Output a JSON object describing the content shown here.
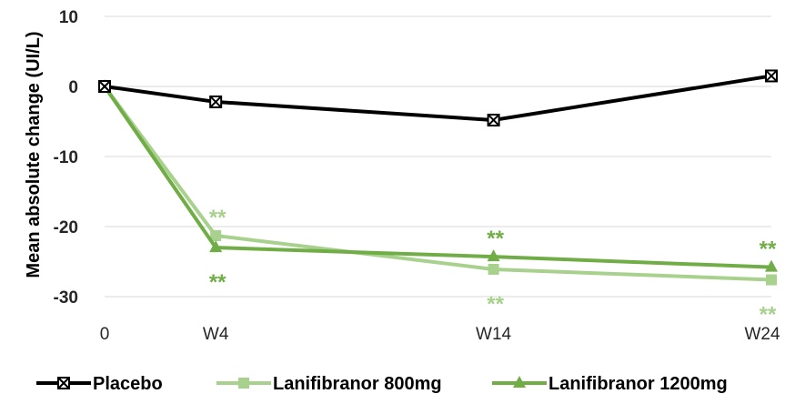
{
  "chart_data": {
    "type": "line",
    "ylabel": "Mean absolute change (UI/L)",
    "xlabel": "",
    "categories": [
      "0",
      "W4",
      "W14",
      "W24"
    ],
    "x": [
      0,
      4,
      14,
      24
    ],
    "ylim": [
      -30,
      10
    ],
    "yticks": [
      10,
      0,
      -10,
      -20,
      -30
    ],
    "grid": true,
    "legend_position": "bottom",
    "series": [
      {
        "name": "Placebo",
        "color": "#000000",
        "marker": "x-square",
        "values": [
          0,
          -2.2,
          -4.8,
          1.5
        ]
      },
      {
        "name": "Lanifibranor 800mg",
        "color": "#a9d18e",
        "marker": "square",
        "values": [
          0,
          -21.3,
          -26.1,
          -27.6
        ]
      },
      {
        "name": "Lanifibranor 1200mg",
        "color": "#70ad47",
        "marker": "triangle",
        "values": [
          0,
          -23.0,
          -24.3,
          -25.8
        ]
      }
    ],
    "annotations": [
      {
        "text": "**",
        "series": "Lanifibranor 800mg",
        "x": 4,
        "position": "above",
        "color": "#a9d18e"
      },
      {
        "text": "**",
        "series": "Lanifibranor 1200mg",
        "x": 4,
        "position": "below",
        "color": "#70ad47"
      },
      {
        "text": "**",
        "series": "Lanifibranor 1200mg",
        "x": 14,
        "position": "above",
        "color": "#70ad47"
      },
      {
        "text": "**",
        "series": "Lanifibranor 800mg",
        "x": 14,
        "position": "below",
        "color": "#a9d18e"
      },
      {
        "text": "**",
        "series": "Lanifibranor 1200mg",
        "x": 24,
        "position": "above",
        "color": "#70ad47"
      },
      {
        "text": "**",
        "series": "Lanifibranor 800mg",
        "x": 24,
        "position": "below",
        "color": "#a9d18e"
      }
    ]
  }
}
